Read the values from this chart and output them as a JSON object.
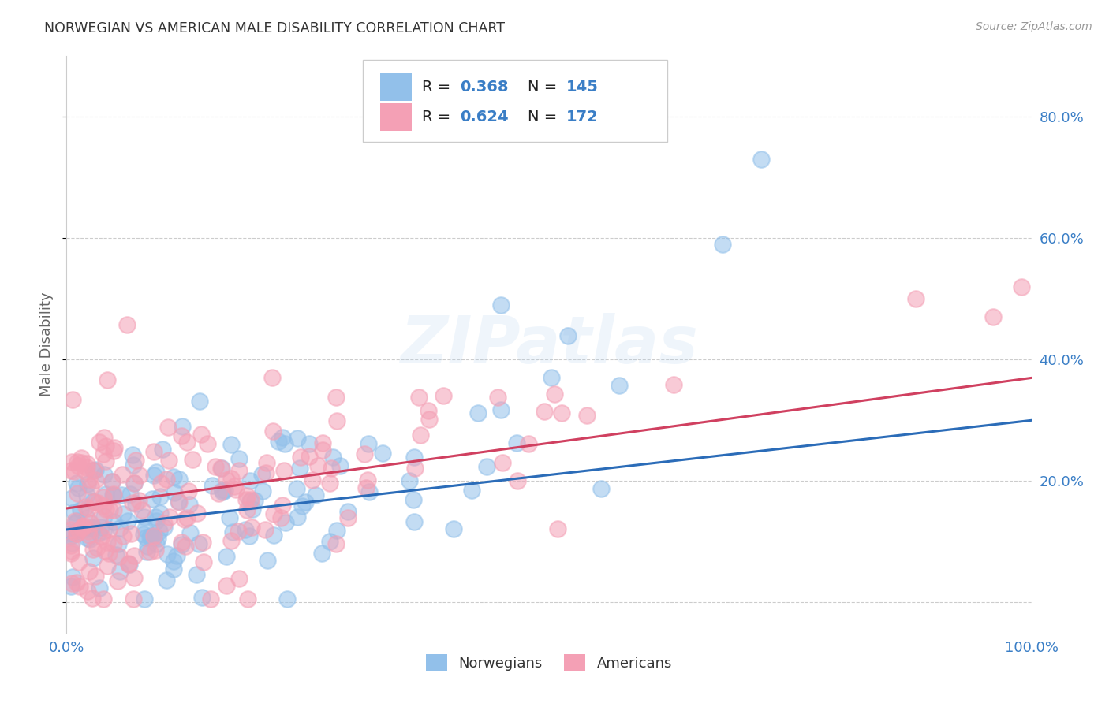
{
  "title": "NORWEGIAN VS AMERICAN MALE DISABILITY CORRELATION CHART",
  "source": "Source: ZipAtlas.com",
  "ylabel": "Male Disability",
  "xlim": [
    0.0,
    1.0
  ],
  "ylim": [
    -0.05,
    0.9
  ],
  "ytick_positions": [
    0.0,
    0.2,
    0.4,
    0.6,
    0.8
  ],
  "yticklabels": [
    "",
    "20.0%",
    "40.0%",
    "60.0%",
    "80.0%"
  ],
  "norwegian_R": 0.368,
  "norwegian_N": 145,
  "american_R": 0.624,
  "american_N": 172,
  "norwegian_color": "#92C0EA",
  "american_color": "#F4A0B5",
  "norwegian_line_color": "#2B6CB8",
  "american_line_color": "#D04060",
  "watermark": "ZIPatlas",
  "background_color": "#ffffff",
  "grid_color": "#cccccc",
  "title_color": "#333333",
  "axis_label_color": "#666666",
  "tick_label_color": "#3A7EC6",
  "nor_line_start_y": 0.12,
  "nor_line_end_y": 0.3,
  "ame_line_start_y": 0.155,
  "ame_line_end_y": 0.37
}
